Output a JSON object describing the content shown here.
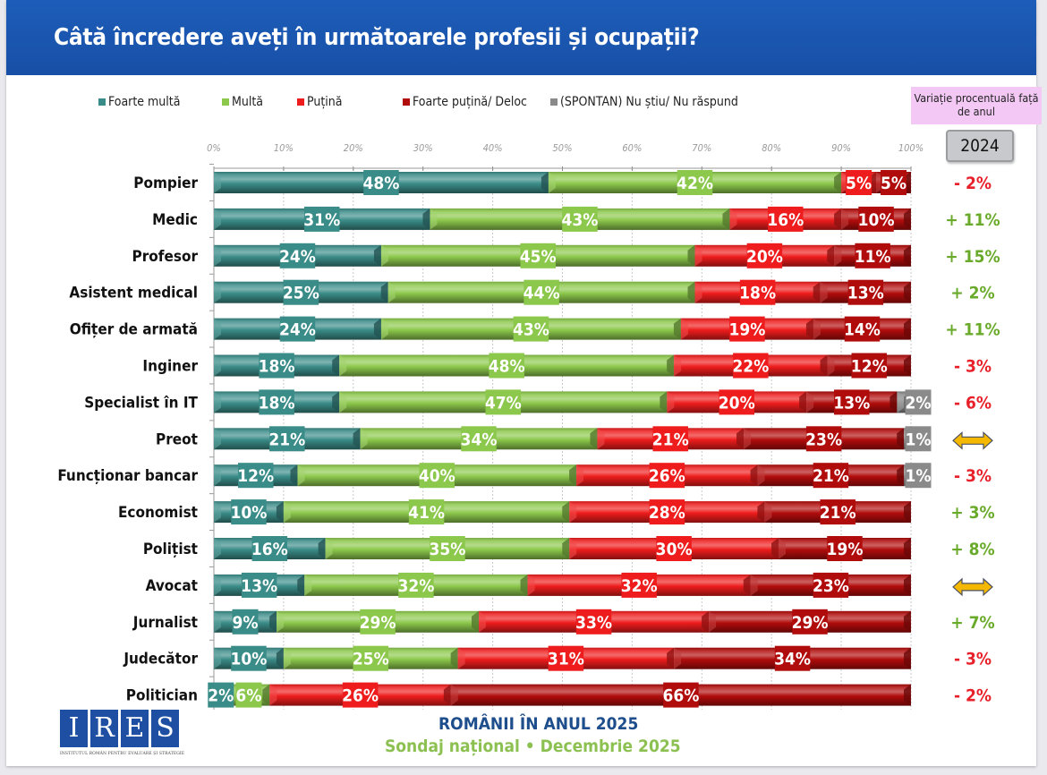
{
  "header": {
    "title": "Câtă încredere aveți în următoarele profesii și ocupații?"
  },
  "variation_header": {
    "label": "Variație procentuală față de anul",
    "year": "2024"
  },
  "footer": {
    "line1": "ROMÂNII ÎN ANUL 2025",
    "line2": "Sondaj național • Decembrie 2025"
  },
  "logo": {
    "letters": [
      "I",
      "R",
      "E",
      "S"
    ],
    "subtitle": "INSTITUTUL ROMÂN PENTRU EVALUARE ȘI STRATEGIE"
  },
  "colors": {
    "header_bg": "#1a55ae",
    "foarte_multa": "#3a8c88",
    "multa": "#8cc84b",
    "putina": "#ee1c1c",
    "foarte_putina": "#b10c0c",
    "nu_stiu": "#8a8a8a",
    "positive_change": "#6aaa2a",
    "negative_change": "#e8202a",
    "no_change_arrow": "#f5b800"
  },
  "chart_data": {
    "type": "bar",
    "orientation": "horizontal",
    "stacked": true,
    "title": "Câtă încredere aveți în următoarele profesii și ocupații?",
    "xlabel": "",
    "ylabel": "",
    "xlim": [
      0,
      100
    ],
    "x_ticks": [
      "0%",
      "10%",
      "20%",
      "30%",
      "40%",
      "50%",
      "60%",
      "70%",
      "80%",
      "90%",
      "100%"
    ],
    "grid": true,
    "legend_position": "top",
    "categories": [
      "Pompier",
      "Medic",
      "Profesor",
      "Asistent medical",
      "Ofițer de armată",
      "Inginer",
      "Specialist în IT",
      "Preot",
      "Funcționar bancar",
      "Economist",
      "Polițist",
      "Avocat",
      "Jurnalist",
      "Judecător",
      "Politician"
    ],
    "series": [
      {
        "name": "Foarte multă",
        "color_key": "foarte_multa",
        "values": [
          48,
          31,
          24,
          25,
          24,
          18,
          18,
          21,
          12,
          10,
          16,
          13,
          9,
          10,
          2
        ]
      },
      {
        "name": "Multă",
        "color_key": "multa",
        "values": [
          42,
          43,
          45,
          44,
          43,
          48,
          47,
          34,
          40,
          41,
          35,
          32,
          29,
          25,
          6
        ]
      },
      {
        "name": "Puțină",
        "color_key": "putina",
        "values": [
          5,
          16,
          20,
          18,
          19,
          22,
          20,
          21,
          26,
          28,
          30,
          32,
          33,
          31,
          26
        ]
      },
      {
        "name": "Foarte puțină/ Deloc",
        "color_key": "foarte_putina",
        "values": [
          5,
          10,
          11,
          13,
          14,
          12,
          13,
          23,
          21,
          21,
          19,
          23,
          29,
          34,
          66
        ]
      },
      {
        "name": "(SPONTAN) Nu știu/ Nu răspund",
        "color_key": "nu_stiu",
        "values": [
          0,
          0,
          0,
          0,
          0,
          0,
          2,
          1,
          1,
          0,
          0,
          0,
          0,
          0,
          0
        ]
      }
    ],
    "variation_vs_2024": [
      "- 2%",
      "+ 11%",
      "+ 15%",
      "+ 2%",
      "+ 11%",
      "- 3%",
      "- 6%",
      "↔",
      "- 3%",
      "+ 3%",
      "+ 8%",
      "↔",
      "+ 7%",
      "- 3%",
      "- 2%"
    ]
  }
}
